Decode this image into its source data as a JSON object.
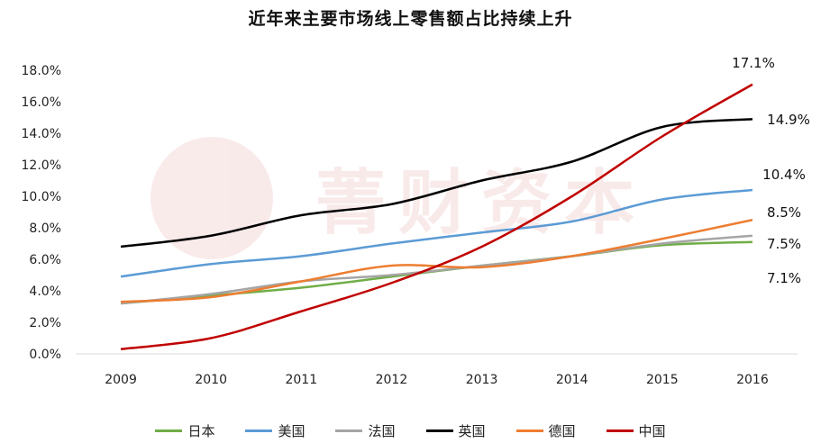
{
  "chart_data": {
    "type": "line",
    "title": "近年来主要市场线上零售额占比持续上升",
    "categories": [
      "2009",
      "2010",
      "2011",
      "2012",
      "2013",
      "2014",
      "2015",
      "2016"
    ],
    "y_ticks": [
      "0.0%",
      "2.0%",
      "4.0%",
      "6.0%",
      "8.0%",
      "10.0%",
      "12.0%",
      "14.0%",
      "16.0%",
      "18.0%"
    ],
    "ylim": [
      0,
      18
    ],
    "grid": false,
    "legend_position": "bottom",
    "series": [
      {
        "name": "日本",
        "color": "#70ad47",
        "values": [
          3.2,
          3.7,
          4.2,
          4.9,
          5.6,
          6.2,
          6.9,
          7.1
        ],
        "end_label": "7.1%"
      },
      {
        "name": "美国",
        "color": "#5b9bd5",
        "values": [
          4.9,
          5.7,
          6.2,
          7.0,
          7.7,
          8.4,
          9.8,
          10.4
        ],
        "end_label": "10.4%"
      },
      {
        "name": "法国",
        "color": "#a5a5a5",
        "values": [
          3.2,
          3.8,
          4.6,
          5.0,
          5.6,
          6.2,
          7.0,
          7.5
        ],
        "end_label": "7.5%"
      },
      {
        "name": "英国",
        "color": "#000000",
        "values": [
          6.8,
          7.5,
          8.8,
          9.5,
          11.0,
          12.2,
          14.4,
          14.9
        ],
        "end_label": "14.9%"
      },
      {
        "name": "德国",
        "color": "#ed7d31",
        "values": [
          3.3,
          3.6,
          4.6,
          5.6,
          5.5,
          6.2,
          7.3,
          8.5
        ],
        "end_label": "8.5%"
      },
      {
        "name": "中国",
        "color": "#c00000",
        "values": [
          0.3,
          1.0,
          2.7,
          4.5,
          6.8,
          10.0,
          13.8,
          17.1
        ],
        "end_label": "17.1%"
      }
    ],
    "watermark_text": "菁财资本"
  }
}
